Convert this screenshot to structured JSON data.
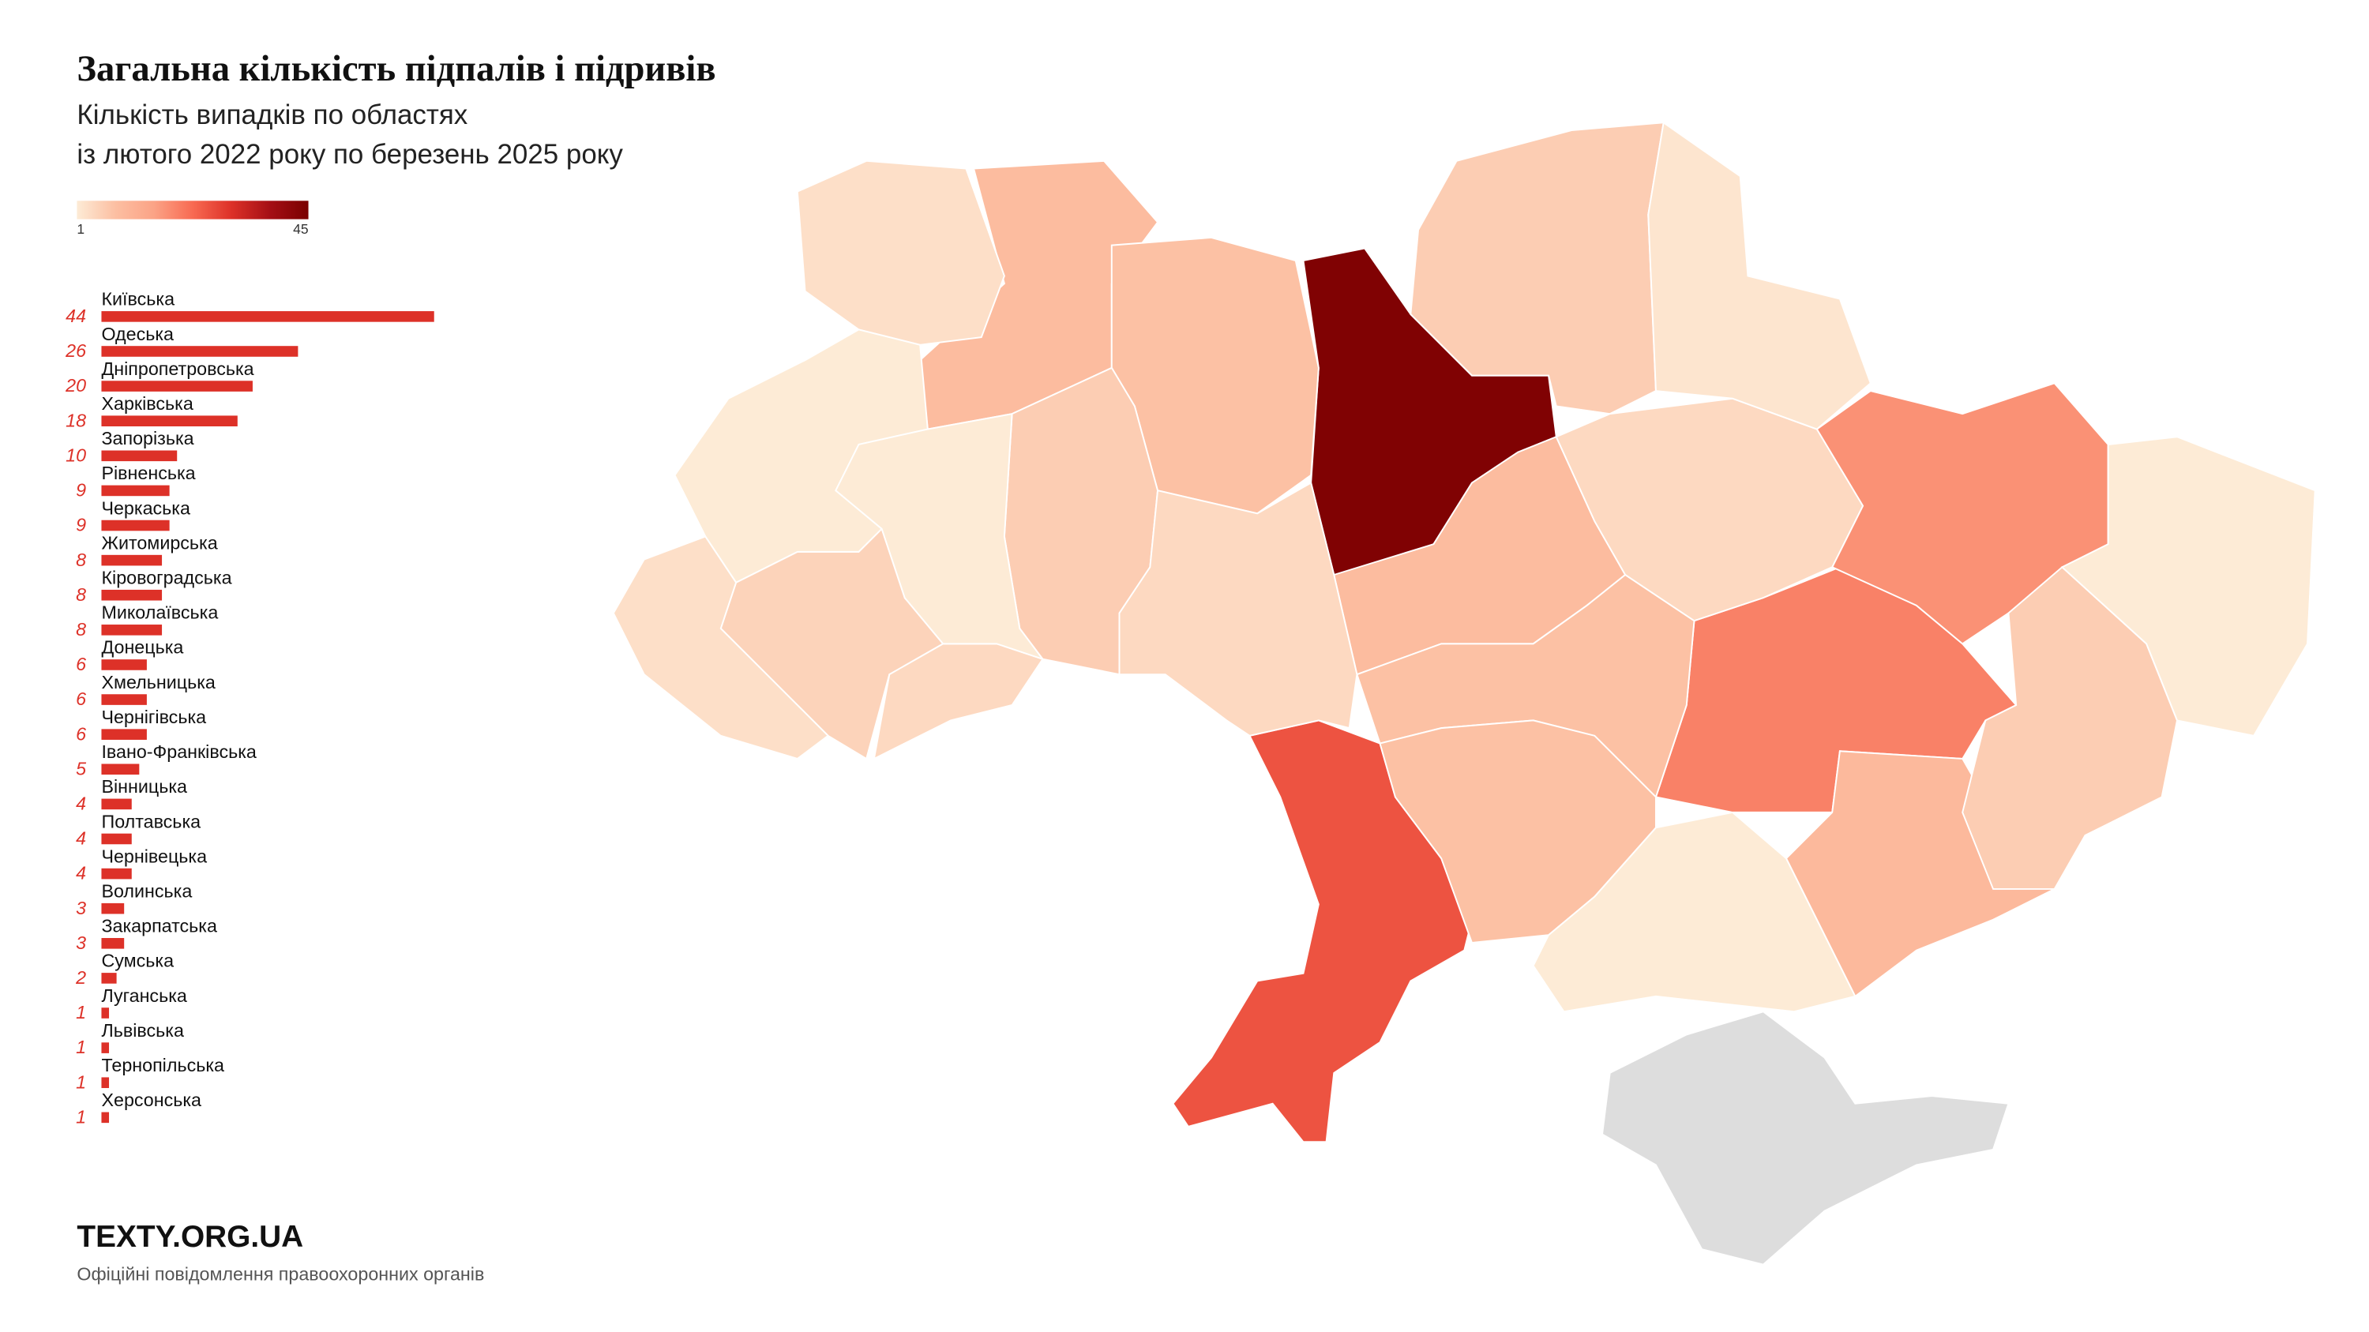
{
  "chart_data": {
    "type": "bar-map",
    "title": "Загальна кількість підпалів і підривів",
    "subtitle": [
      "Кількість випадків по областях",
      "із лютого 2022 року по березень 2025 року"
    ],
    "categories": [
      "Київська",
      "Одеська",
      "Дніпропетровська",
      "Харківська",
      "Запорізька",
      "Рівненська",
      "Черкаська",
      "Житомирська",
      "Кіровоградська",
      "Миколаївська",
      "Донецька",
      "Хмельницька",
      "Чернігівська",
      "Івано-Франківська",
      "Вінницька",
      "Полтавська",
      "Чернівецька",
      "Волинська",
      "Закарпатська",
      "Сумська",
      "Луганська",
      "Львівська",
      "Тернопільська",
      "Херсонська"
    ],
    "values": [
      44,
      26,
      20,
      18,
      10,
      9,
      9,
      8,
      8,
      8,
      6,
      6,
      6,
      5,
      4,
      4,
      4,
      3,
      3,
      2,
      1,
      1,
      1,
      1
    ],
    "color": "#dd3128",
    "colorbar": {
      "range": [
        1,
        45
      ],
      "colors": [
        "#fdebd6",
        "#fcbfa2",
        "#fba386",
        "#f86a52",
        "#dd3128",
        "#a50f15",
        "#7a0000"
      ]
    },
    "logo": "TEXTY.ORG.UA",
    "source": "Офіційні повідомлення правоохоронних органів"
  }
}
